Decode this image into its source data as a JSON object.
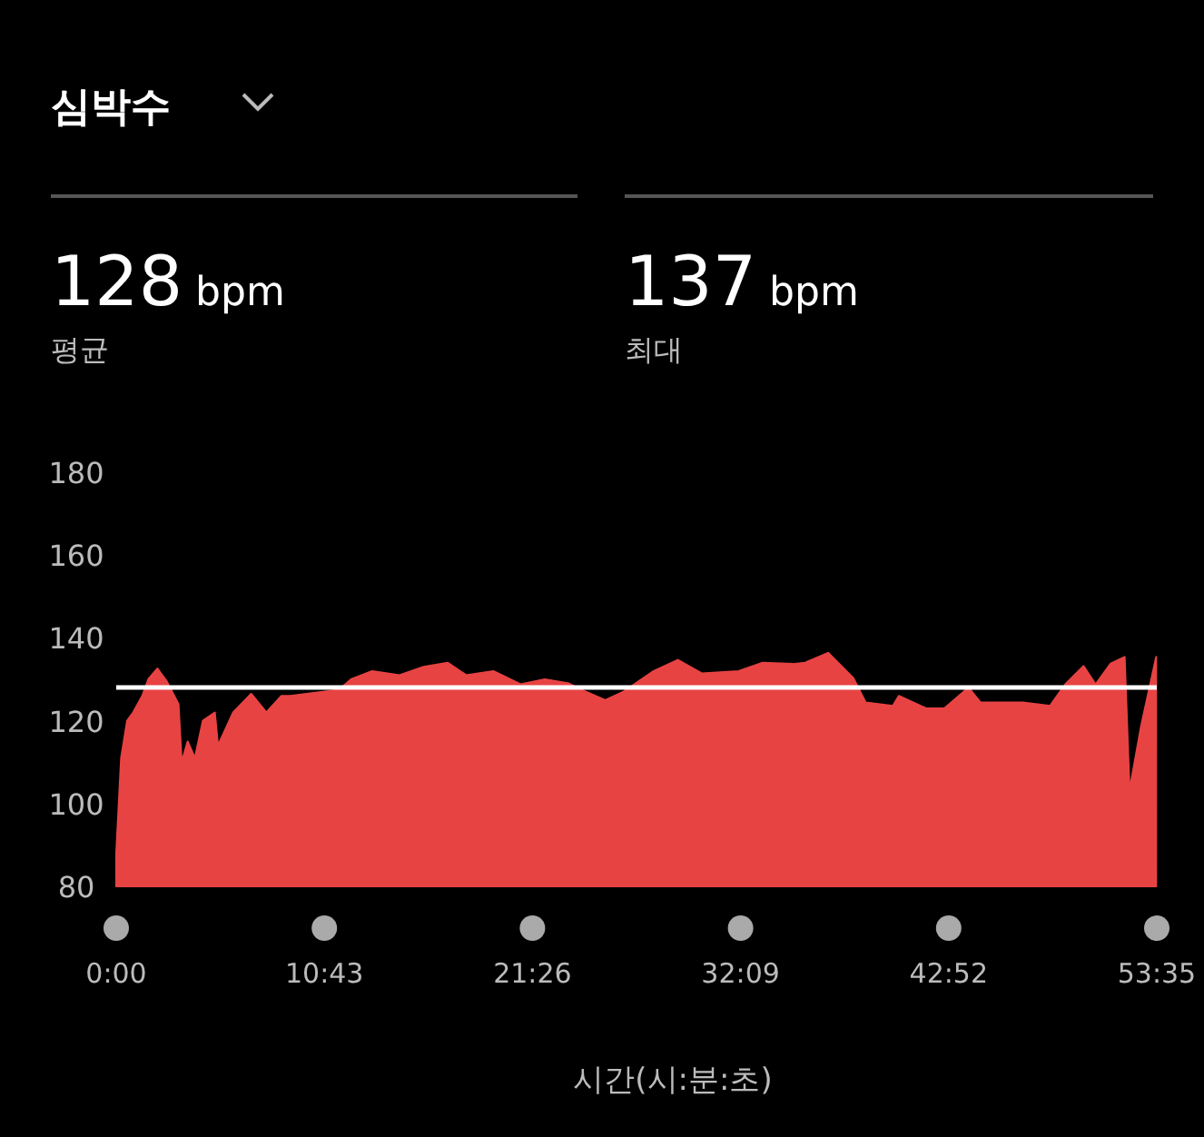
{
  "chart_data": {
    "type": "area",
    "title": "심박수",
    "xlabel": "시간(시:분:초)",
    "annotations": [
      "128 bpm",
      "평균",
      "137 bpm",
      "최대"
    ],
    "xlim": [
      0,
      53.583
    ],
    "ylim": [
      80,
      180
    ],
    "xticks": [
      {
        "value": 0,
        "label": "0:00"
      },
      {
        "value": 10.717,
        "label": "10:43"
      },
      {
        "value": 21.433,
        "label": "21:26"
      },
      {
        "value": 32.15,
        "label": "32:09"
      },
      {
        "value": 42.867,
        "label": "42:52"
      },
      {
        "value": 53.583,
        "label": "53:35"
      }
    ],
    "yticks": [
      80,
      100,
      120,
      140,
      160,
      180
    ],
    "grid": false,
    "ref_lines": [
      {
        "axis": "y",
        "value": 128,
        "color": "#ffffff"
      }
    ],
    "series": [
      {
        "color": "#e84343",
        "x": [
          0,
          0.25,
          0.56,
          0.87,
          1.34,
          1.65,
          2.12,
          2.59,
          3.21,
          3.37,
          3.68,
          4.05,
          4.46,
          5.08,
          5.24,
          6.02,
          6.95,
          7.73,
          8.51,
          8.98,
          11.47,
          12.09,
          13.18,
          14.59,
          15.83,
          17.08,
          18.02,
          19.42,
          20.82,
          22.07,
          23.31,
          23.94,
          25.18,
          26.12,
          27.68,
          28.92,
          30.17,
          32.05,
          33.29,
          34.85,
          35.47,
          36.66,
          37.96,
          38.59,
          39.99,
          40.3,
          41.7,
          42.64,
          43.89,
          44.51,
          46.69,
          48.09,
          48.87,
          49.81,
          50.43,
          51.21,
          51.93,
          52.18,
          52.77,
          53.55
        ],
        "values": [
          88,
          111,
          120,
          122,
          126,
          130,
          132.6,
          129.6,
          124,
          110,
          115,
          111,
          120,
          122,
          114,
          122,
          126.5,
          122,
          126,
          126,
          127.5,
          130,
          132,
          131,
          133,
          134,
          131,
          132,
          128.8,
          130,
          129,
          127.5,
          125,
          127,
          132,
          134.7,
          131.4,
          132,
          134,
          133.7,
          134,
          136.4,
          130.3,
          124.4,
          123.6,
          126,
          123,
          123,
          128,
          124.4,
          124.4,
          123.6,
          128.8,
          133.2,
          128.8,
          133.8,
          135.4,
          103.2,
          118.6,
          135.4
        ]
      }
    ]
  }
}
